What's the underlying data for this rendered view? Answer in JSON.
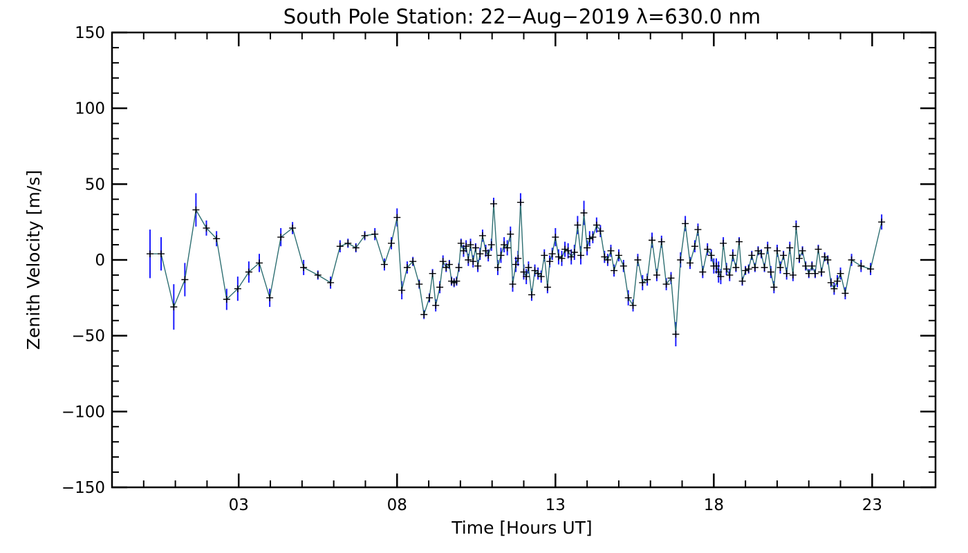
{
  "chart_data": {
    "type": "line",
    "title": "South Pole Station: 22−Aug−2019 λ=630.0 nm",
    "xlabel": "Time [Hours UT]",
    "ylabel": "Zenith Velocity [m/s]",
    "xlim": [
      -1,
      25
    ],
    "ylim": [
      -150,
      150
    ],
    "x_ticks": [
      3,
      8,
      13,
      18,
      23
    ],
    "x_tick_labels": [
      "03",
      "08",
      "13",
      "18",
      "23"
    ],
    "y_ticks": [
      150,
      100,
      50,
      0,
      -50,
      -100,
      -150
    ],
    "y_tick_labels": [
      "150",
      "100",
      "50",
      "0",
      "−50",
      "−100",
      "−150"
    ],
    "grid": false,
    "line_color": "#2e6f72",
    "marker_color": "#000000",
    "errorbar_color": "#1a1aff",
    "points": [
      [
        0.2,
        4,
        16
      ],
      [
        0.55,
        4,
        11
      ],
      [
        0.95,
        -31,
        15
      ],
      [
        1.3,
        -13,
        11
      ],
      [
        1.65,
        33,
        11
      ],
      [
        1.98,
        21,
        5
      ],
      [
        2.3,
        14,
        5
      ],
      [
        2.62,
        -26,
        7
      ],
      [
        2.97,
        -19,
        8
      ],
      [
        3.32,
        -8,
        7
      ],
      [
        3.65,
        -2,
        6
      ],
      [
        3.98,
        -25,
        6
      ],
      [
        4.33,
        15,
        6
      ],
      [
        4.7,
        21,
        4
      ],
      [
        5.05,
        -5,
        5
      ],
      [
        5.5,
        -10,
        3
      ],
      [
        5.9,
        -15,
        4
      ],
      [
        6.2,
        9,
        4
      ],
      [
        6.45,
        11,
        3
      ],
      [
        6.7,
        8,
        3
      ],
      [
        6.98,
        16,
        3
      ],
      [
        7.3,
        17,
        4
      ],
      [
        7.6,
        -3,
        4
      ],
      [
        7.82,
        11,
        4
      ],
      [
        8.0,
        28,
        6
      ],
      [
        8.15,
        -20,
        6
      ],
      [
        8.32,
        -5,
        4
      ],
      [
        8.5,
        -1,
        3
      ],
      [
        8.7,
        -16,
        3
      ],
      [
        8.85,
        -36,
        3
      ],
      [
        9.02,
        -25,
        3
      ],
      [
        9.12,
        -9,
        3
      ],
      [
        9.22,
        -30,
        4
      ],
      [
        9.35,
        -18,
        4
      ],
      [
        9.45,
        -1,
        4
      ],
      [
        9.55,
        -5,
        3
      ],
      [
        9.65,
        -3,
        3
      ],
      [
        9.72,
        -14,
        3
      ],
      [
        9.8,
        -15,
        3
      ],
      [
        9.88,
        -14,
        3
      ],
      [
        9.95,
        -5,
        3
      ],
      [
        10.02,
        11,
        3
      ],
      [
        10.1,
        6,
        4
      ],
      [
        10.18,
        9,
        4
      ],
      [
        10.25,
        0,
        4
      ],
      [
        10.32,
        10,
        4
      ],
      [
        10.4,
        -1,
        4
      ],
      [
        10.48,
        8,
        3
      ],
      [
        10.55,
        -4,
        4
      ],
      [
        10.62,
        4,
        4
      ],
      [
        10.7,
        16,
        4
      ],
      [
        10.8,
        6,
        4
      ],
      [
        10.88,
        3,
        4
      ],
      [
        10.98,
        10,
        4
      ],
      [
        11.05,
        37,
        4
      ],
      [
        11.18,
        -5,
        5
      ],
      [
        11.28,
        3,
        5
      ],
      [
        11.38,
        10,
        5
      ],
      [
        11.48,
        8,
        5
      ],
      [
        11.58,
        17,
        5
      ],
      [
        11.65,
        -16,
        5
      ],
      [
        11.75,
        -3,
        5
      ],
      [
        11.82,
        1,
        5
      ],
      [
        11.9,
        38,
        6
      ],
      [
        12.0,
        -8,
        5
      ],
      [
        12.08,
        -11,
        5
      ],
      [
        12.15,
        -5,
        4
      ],
      [
        12.25,
        -23,
        4
      ],
      [
        12.35,
        -7,
        4
      ],
      [
        12.45,
        -9,
        4
      ],
      [
        12.55,
        -11,
        4
      ],
      [
        12.65,
        3,
        4
      ],
      [
        12.75,
        -18,
        4
      ],
      [
        12.82,
        -1,
        4
      ],
      [
        12.9,
        4,
        4
      ],
      [
        13.0,
        15,
        6
      ],
      [
        13.1,
        2,
        5
      ],
      [
        13.2,
        1,
        5
      ],
      [
        13.3,
        7,
        5
      ],
      [
        13.4,
        6,
        5
      ],
      [
        13.5,
        2,
        5
      ],
      [
        13.6,
        5,
        5
      ],
      [
        13.7,
        23,
        6
      ],
      [
        13.8,
        3,
        6
      ],
      [
        13.9,
        31,
        8
      ],
      [
        14.0,
        8,
        5
      ],
      [
        14.08,
        14,
        5
      ],
      [
        14.18,
        15,
        4
      ],
      [
        14.3,
        23,
        5
      ],
      [
        14.42,
        19,
        4
      ],
      [
        14.55,
        2,
        4
      ],
      [
        14.65,
        0,
        4
      ],
      [
        14.75,
        6,
        4
      ],
      [
        14.85,
        -7,
        4
      ],
      [
        15.0,
        3,
        4
      ],
      [
        15.15,
        -4,
        4
      ],
      [
        15.3,
        -25,
        5
      ],
      [
        15.45,
        -30,
        4
      ],
      [
        15.6,
        0,
        4
      ],
      [
        15.75,
        -15,
        5
      ],
      [
        15.9,
        -13,
        4
      ],
      [
        16.05,
        13,
        5
      ],
      [
        16.2,
        -10,
        4
      ],
      [
        16.35,
        12,
        4
      ],
      [
        16.5,
        -16,
        4
      ],
      [
        16.65,
        -12,
        4
      ],
      [
        16.8,
        -49,
        8
      ],
      [
        16.95,
        0,
        5
      ],
      [
        17.1,
        24,
        5
      ],
      [
        17.25,
        -2,
        4
      ],
      [
        17.4,
        9,
        4
      ],
      [
        17.5,
        20,
        4
      ],
      [
        17.65,
        -8,
        4
      ],
      [
        17.8,
        7,
        4
      ],
      [
        17.92,
        3,
        4
      ],
      [
        18.0,
        -4,
        5
      ],
      [
        18.08,
        -4,
        5
      ],
      [
        18.15,
        -8,
        7
      ],
      [
        18.22,
        -11,
        5
      ],
      [
        18.3,
        11,
        4
      ],
      [
        18.4,
        -6,
        4
      ],
      [
        18.5,
        -10,
        4
      ],
      [
        18.6,
        3,
        4
      ],
      [
        18.7,
        -5,
        3
      ],
      [
        18.8,
        12,
        3
      ],
      [
        18.9,
        -14,
        3
      ],
      [
        19.0,
        -7,
        3
      ],
      [
        19.1,
        -6,
        3
      ],
      [
        19.2,
        3,
        3
      ],
      [
        19.3,
        -5,
        3
      ],
      [
        19.4,
        6,
        3
      ],
      [
        19.5,
        4,
        3
      ],
      [
        19.6,
        -5,
        3
      ],
      [
        19.7,
        8,
        4
      ],
      [
        19.8,
        -8,
        4
      ],
      [
        19.9,
        -18,
        4
      ],
      [
        20.0,
        6,
        4
      ],
      [
        20.1,
        -5,
        4
      ],
      [
        20.2,
        3,
        3
      ],
      [
        20.3,
        -9,
        4
      ],
      [
        20.4,
        8,
        4
      ],
      [
        20.5,
        -10,
        4
      ],
      [
        20.6,
        22,
        4
      ],
      [
        20.7,
        1,
        3
      ],
      [
        20.8,
        6,
        3
      ],
      [
        20.9,
        -4,
        3
      ],
      [
        21.0,
        -9,
        3
      ],
      [
        21.1,
        -4,
        3
      ],
      [
        21.2,
        -9,
        3
      ],
      [
        21.3,
        7,
        3
      ],
      [
        21.4,
        -8,
        3
      ],
      [
        21.5,
        2,
        3
      ],
      [
        21.6,
        0,
        3
      ],
      [
        21.7,
        -15,
        3
      ],
      [
        21.8,
        -19,
        4
      ],
      [
        21.9,
        -14,
        4
      ],
      [
        22.0,
        -9,
        4
      ],
      [
        22.15,
        -22,
        4
      ],
      [
        22.35,
        0,
        4
      ],
      [
        22.65,
        -4,
        4
      ],
      [
        22.95,
        -6,
        4
      ],
      [
        23.3,
        25,
        5
      ]
    ]
  }
}
